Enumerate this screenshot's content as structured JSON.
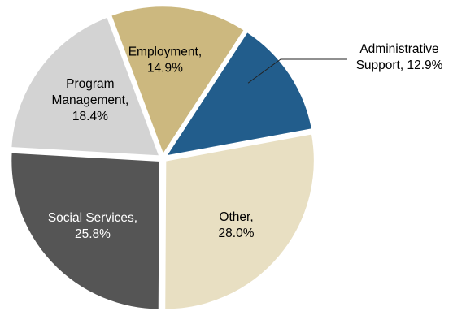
{
  "chart_data": {
    "type": "pie",
    "title": "",
    "legend": "none",
    "start_angle_deg": 33.1,
    "direction": "clockwise",
    "slices": [
      {
        "label": "Administrative Support",
        "value": 12.9,
        "display": [
          "Administrative",
          "Support, 12.9%"
        ],
        "color": "#225d8c",
        "text_color": "#000000",
        "label_outside": true
      },
      {
        "label": "Other",
        "value": 28.0,
        "display": [
          "Other,",
          "28.0%"
        ],
        "color": "#e8dfc2",
        "text_color": "#000000",
        "label_outside": false
      },
      {
        "label": "Social Services",
        "value": 25.8,
        "display": [
          "Social Services,",
          "25.8%"
        ],
        "color": "#555555",
        "text_color": "#ffffff",
        "label_outside": false
      },
      {
        "label": "Program Management",
        "value": 18.4,
        "display": [
          "Program",
          "Management,",
          "18.4%"
        ],
        "color": "#d3d3d3",
        "text_color": "#000000",
        "label_outside": false
      },
      {
        "label": "Employment",
        "value": 14.9,
        "display": [
          "Employment,",
          "14.9%"
        ],
        "color": "#ccb87f",
        "text_color": "#000000",
        "label_outside": false
      }
    ]
  }
}
